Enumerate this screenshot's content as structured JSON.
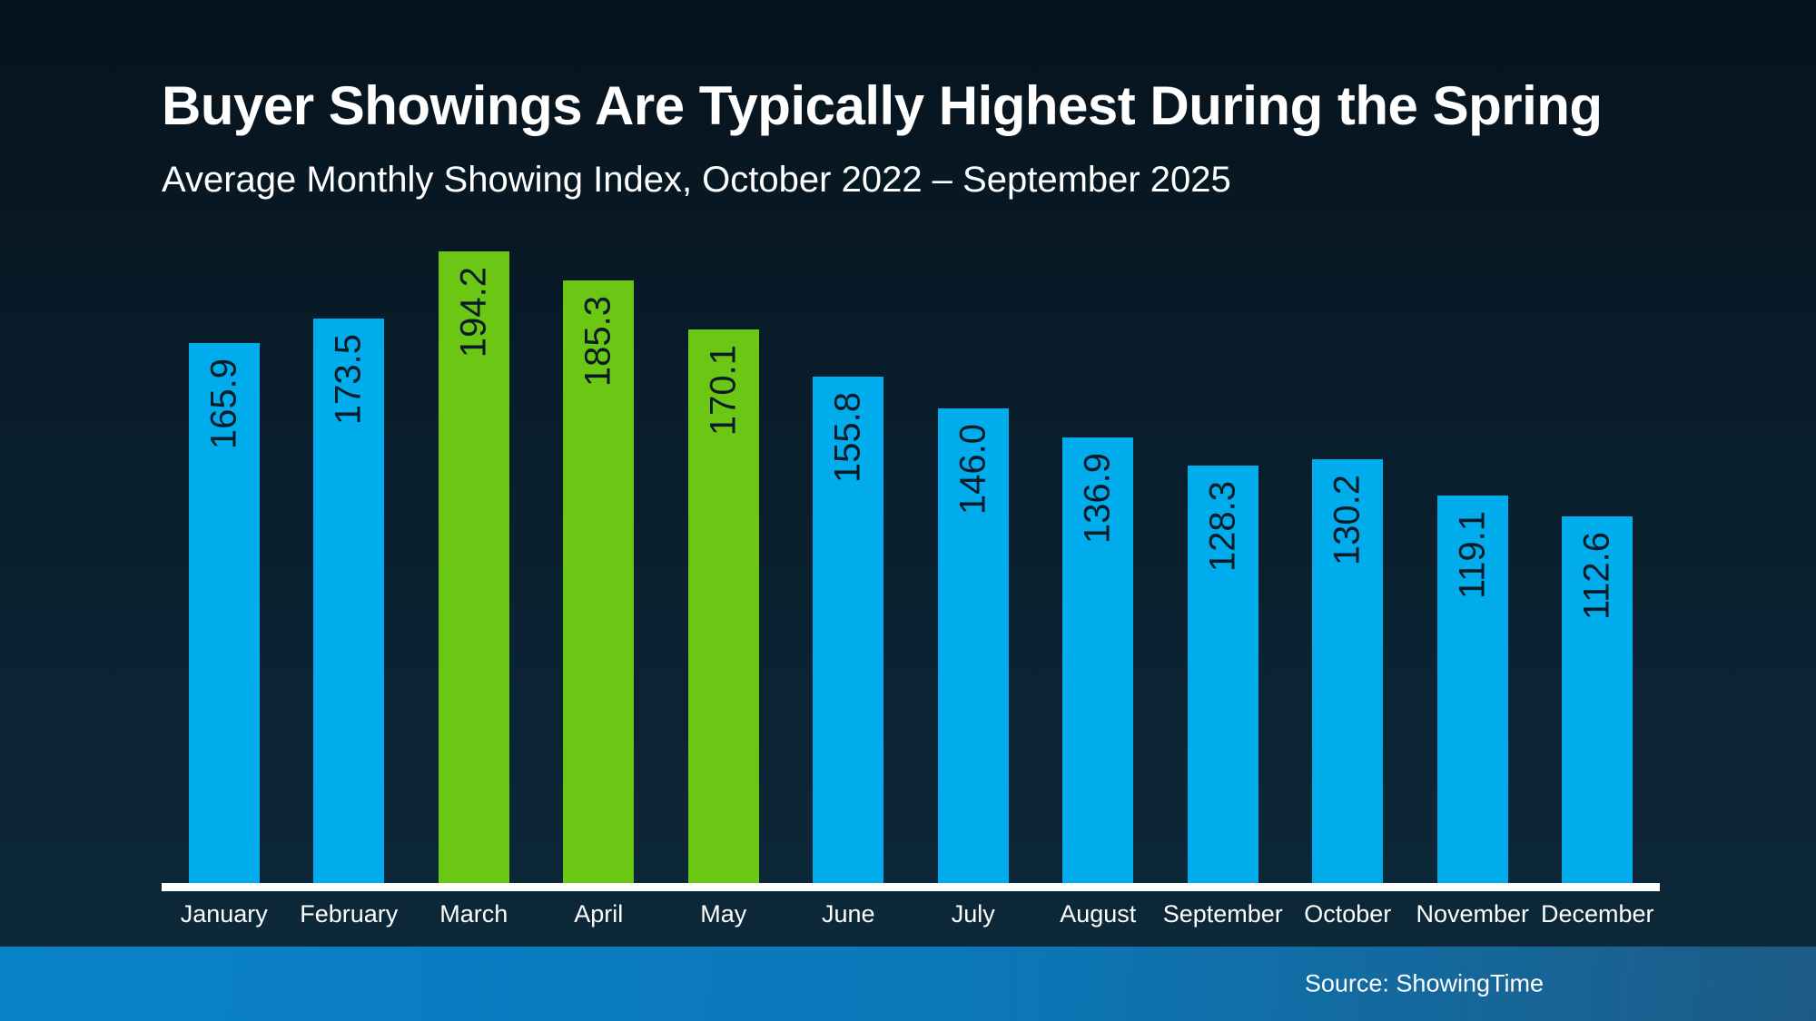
{
  "header": {
    "title": "Buyer Showings Are Typically Highest During the Spring",
    "subtitle": "Average Monthly Showing Index, October 2022 – September 2025"
  },
  "chart_data": {
    "type": "bar",
    "title": "Buyer Showings Are Typically Highest During the Spring",
    "subtitle": "Average Monthly Showing Index, October 2022 – September 2025",
    "categories": [
      "January",
      "February",
      "March",
      "April",
      "May",
      "June",
      "July",
      "August",
      "September",
      "October",
      "November",
      "December"
    ],
    "values": [
      165.9,
      173.5,
      194.2,
      185.3,
      170.1,
      155.8,
      146.0,
      136.9,
      128.3,
      130.2,
      119.1,
      112.6
    ],
    "highlighted_categories": [
      "March",
      "April",
      "May"
    ],
    "value_label_decimals": 1,
    "value_label_rotation": -90,
    "xlabel": "",
    "ylabel": "",
    "ylim": [
      0,
      200
    ],
    "grid": false,
    "legend": false
  },
  "footer": {
    "source_label": "Source: ShowingTime"
  },
  "colors": {
    "bar_default": "#00ACEB",
    "bar_highlight": "#6CC715",
    "axis_line": "#ffffff",
    "value_label_text": "#0a1b28",
    "title_text": "#ffffff",
    "background_top": "#06131d",
    "background_bottom": "#0d2a3b",
    "footer_gradient_left": "#0a82ca",
    "footer_gradient_right": "#1d5b85"
  }
}
